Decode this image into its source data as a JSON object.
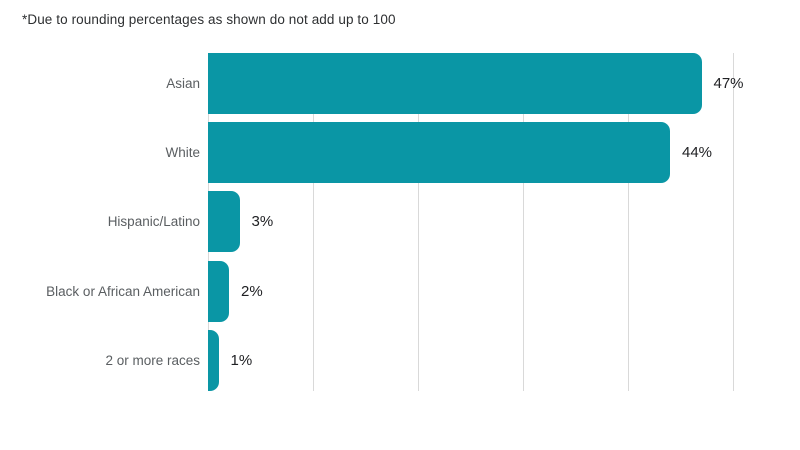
{
  "note": "*Due to rounding percentages as shown do not add up to 100",
  "chart_data": {
    "type": "bar",
    "orientation": "horizontal",
    "title": "",
    "xlabel": "",
    "ylabel": "",
    "categories": [
      "Asian",
      "White",
      "Hispanic/Latino",
      "Black or African American",
      "2 or more races"
    ],
    "values": [
      47,
      44,
      3,
      2,
      1
    ],
    "value_labels": [
      "47%",
      "44%",
      "3%",
      "2%",
      "1%"
    ],
    "unit": "percent",
    "xlim": [
      0,
      50
    ],
    "gridline_interval": 10,
    "grid": true,
    "legend": false,
    "bar_color": "#0a96a5",
    "gridline_color": "#d9d9d9",
    "category_label_color": "#5a5e61",
    "value_label_color": "#202124",
    "background_color": "#ffffff"
  }
}
